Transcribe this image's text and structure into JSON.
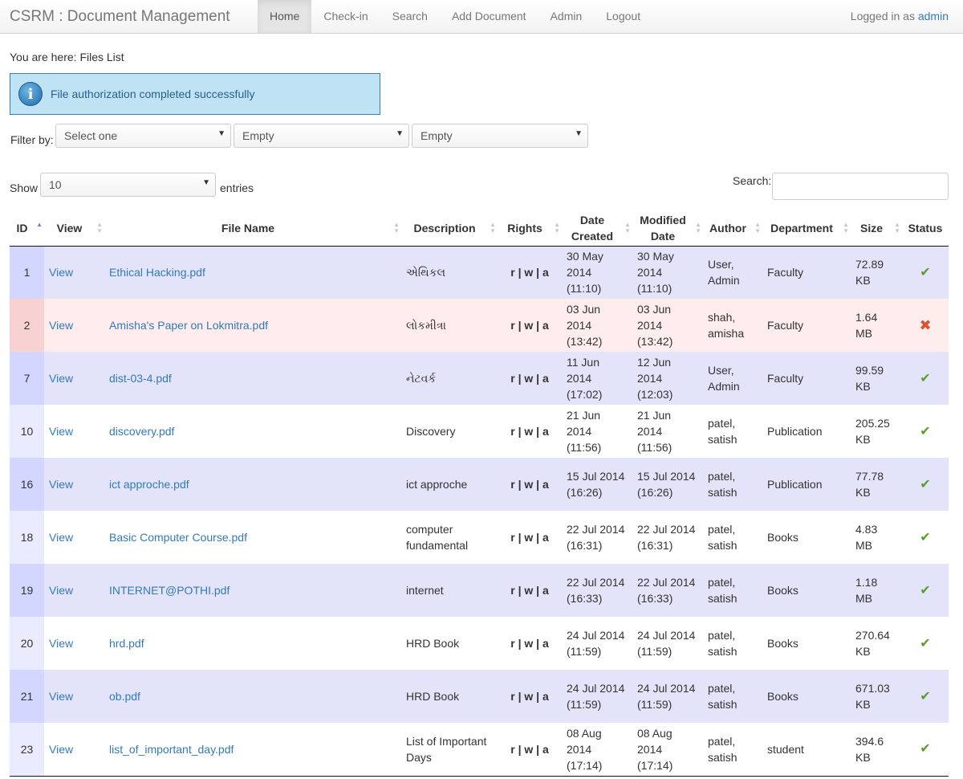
{
  "navbar": {
    "brand": "CSRM : Document Management",
    "items": [
      "Home",
      "Check-in",
      "Search",
      "Add Document",
      "Admin",
      "Logout"
    ],
    "logged_prefix": "Logged in as",
    "logged_user": "admin"
  },
  "breadcrumb": "You are here: Files List",
  "alert": {
    "message": "File authorization completed successfully",
    "icon": "info-icon"
  },
  "filter": {
    "label": "Filter by:",
    "select1": "Select one",
    "select2": "Empty",
    "select3": "Empty"
  },
  "length": {
    "show_label": "Show",
    "value": "10",
    "entries_label": "entries"
  },
  "search": {
    "label": "Search:"
  },
  "table": {
    "headers": {
      "id": "ID",
      "view": "View",
      "file_name": "File Name",
      "description": "Description",
      "rights": "Rights",
      "date_created": "Date Created",
      "modified_date": "Modified Date",
      "author": "Author",
      "department": "Department",
      "size": "Size",
      "status": "Status"
    },
    "rows": [
      {
        "id": "1",
        "view": "View",
        "file": "Ethical Hacking.pdf",
        "desc": "એથિકલ",
        "rights": "r | w | a",
        "created": "30 May 2014 (11:10)",
        "modified": "30 May 2014 (11:10)",
        "author": "User, Admin",
        "dept": "Faculty",
        "size": "72.89 KB",
        "status": "ok"
      },
      {
        "id": "2",
        "view": "View",
        "file": "Amisha's Paper on Lokmitra.pdf",
        "desc": "લોકમીત્રા",
        "rights": "r | w | a",
        "created": "03 Jun 2014 (13:42)",
        "modified": "03 Jun 2014 (13:42)",
        "author": "shah, amisha",
        "dept": "Faculty",
        "size": "1.64 MB",
        "status": "no"
      },
      {
        "id": "7",
        "view": "View",
        "file": "dist-03-4.pdf",
        "desc": "નેટવર્ક",
        "rights": "r | w | a",
        "created": "11 Jun 2014 (17:02)",
        "modified": "12 Jun 2014 (12:03)",
        "author": "User, Admin",
        "dept": "Faculty",
        "size": "99.59 KB",
        "status": "ok"
      },
      {
        "id": "10",
        "view": "View",
        "file": "discovery.pdf",
        "desc": "Discovery",
        "rights": "r | w | a",
        "created": "21 Jun 2014 (11:56)",
        "modified": "21 Jun 2014 (11:56)",
        "author": "patel, satish",
        "dept": "Publication",
        "size": "205.25 KB",
        "status": "ok"
      },
      {
        "id": "16",
        "view": "View",
        "file": "ict approche.pdf",
        "desc": "ict approche",
        "rights": "r | w | a",
        "created": "15 Jul 2014 (16:26)",
        "modified": "15 Jul 2014 (16:26)",
        "author": "patel, satish",
        "dept": "Publication",
        "size": "77.78 KB",
        "status": "ok"
      },
      {
        "id": "18",
        "view": "View",
        "file": "Basic Computer Course.pdf",
        "desc": "computer fundamental",
        "rights": "r | w | a",
        "created": "22 Jul 2014 (16:31)",
        "modified": "22 Jul 2014 (16:31)",
        "author": "patel, satish",
        "dept": "Books",
        "size": "4.83 MB",
        "status": "ok"
      },
      {
        "id": "19",
        "view": "View",
        "file": "INTERNET@POTHI.pdf",
        "desc": "internet",
        "rights": "r | w | a",
        "created": "22 Jul 2014 (16:33)",
        "modified": "22 Jul 2014 (16:33)",
        "author": "patel, satish",
        "dept": "Books",
        "size": "1.18 MB",
        "status": "ok"
      },
      {
        "id": "20",
        "view": "View",
        "file": "hrd.pdf",
        "desc": "HRD Book",
        "rights": "r | w | a",
        "created": "24 Jul 2014 (11:59)",
        "modified": "24 Jul 2014 (11:59)",
        "author": "patel, satish",
        "dept": "Books",
        "size": "270.64 KB",
        "status": "ok"
      },
      {
        "id": "21",
        "view": "View",
        "file": "ob.pdf",
        "desc": "HRD Book",
        "rights": "r | w | a",
        "created": "24 Jul 2014 (11:59)",
        "modified": "24 Jul 2014 (11:59)",
        "author": "patel, satish",
        "dept": "Books",
        "size": "671.03 KB",
        "status": "ok"
      },
      {
        "id": "23",
        "view": "View",
        "file": "list_of_important_day.pdf",
        "desc": "List of Important Days",
        "rights": "r | w | a",
        "created": "08 Aug 2014 (17:14)",
        "modified": "08 Aug 2014 (17:14)",
        "author": "patel, satish",
        "dept": "student",
        "size": "394.6 KB",
        "status": "ok"
      }
    ]
  },
  "colors": {
    "link": "#337ab7",
    "ok": "#5a9e2a",
    "denied": "#d9542c",
    "row_odd": "#e3e4fa",
    "row_denied": "#ffecec"
  }
}
